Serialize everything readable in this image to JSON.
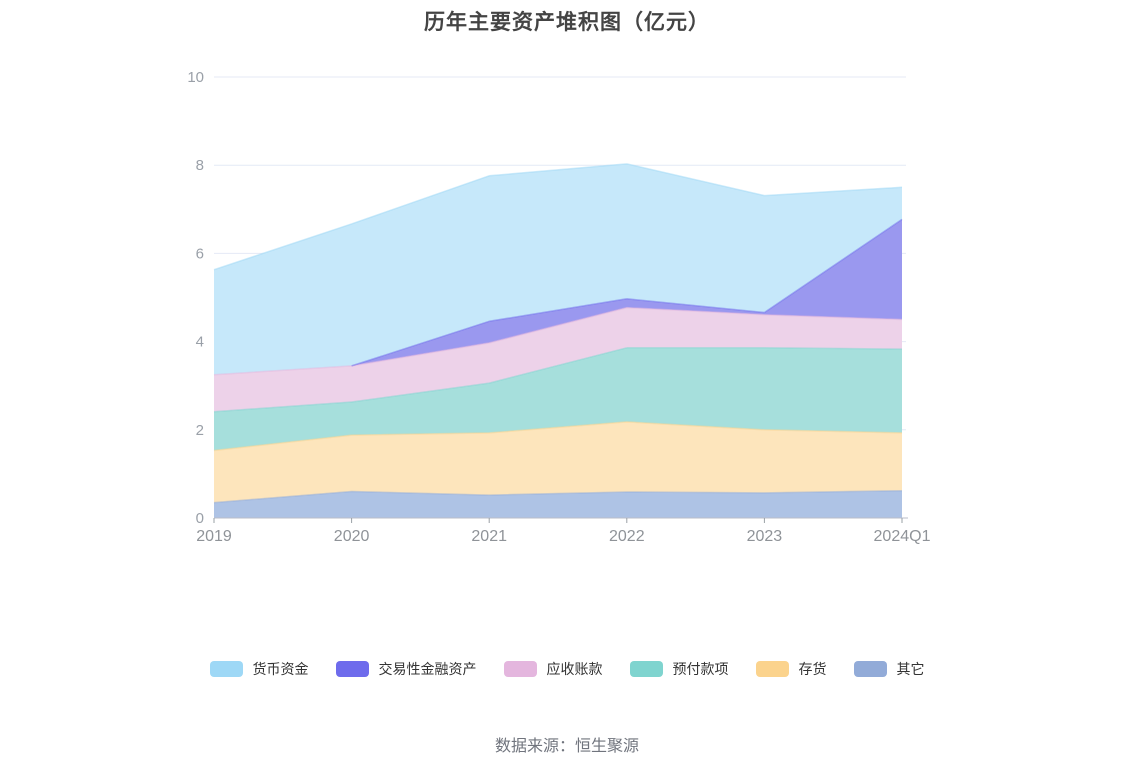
{
  "chart_data": {
    "type": "area",
    "stacked": true,
    "title": "历年主要资产堆积图（亿元）",
    "source": "数据来源：恒生聚源",
    "categories": [
      "2019",
      "2020",
      "2021",
      "2022",
      "2023",
      "2024Q1"
    ],
    "yticks": [
      0,
      2,
      4,
      6,
      8,
      10
    ],
    "ylim": [
      0,
      10
    ],
    "grid": true,
    "legend_position": "bottom",
    "axis_line_color": "#b9bec9",
    "gridline_color": "#e4eaf6",
    "series": [
      {
        "name": "货币资金",
        "color": "#9ED8F6",
        "fill": "#C6E8FA",
        "values": [
          2.38,
          3.22,
          3.3,
          3.06,
          2.65,
          0.73
        ]
      },
      {
        "name": "交易性金融资产",
        "color": "#6E6BEC",
        "fill": "#9A98EF",
        "values": [
          0,
          0,
          0.49,
          0.2,
          0.05,
          2.27
        ]
      },
      {
        "name": "应收账款",
        "color": "#E4B6DE",
        "fill": "#EDD2E9",
        "values": [
          0.84,
          0.82,
          0.91,
          0.91,
          0.75,
          0.67
        ]
      },
      {
        "name": "预付款项",
        "color": "#7FD4CF",
        "fill": "#A6DFDC",
        "values": [
          0.88,
          0.75,
          1.13,
          1.68,
          1.86,
          1.9
        ]
      },
      {
        "name": "存货",
        "color": "#FBD38D",
        "fill": "#FDE5BC",
        "values": [
          1.18,
          1.28,
          1.41,
          1.59,
          1.43,
          1.31
        ]
      },
      {
        "name": "其它",
        "color": "#92ABD8",
        "fill": "#AEC3E5",
        "values": [
          0.35,
          0.6,
          0.52,
          0.59,
          0.57,
          0.62
        ]
      }
    ]
  }
}
